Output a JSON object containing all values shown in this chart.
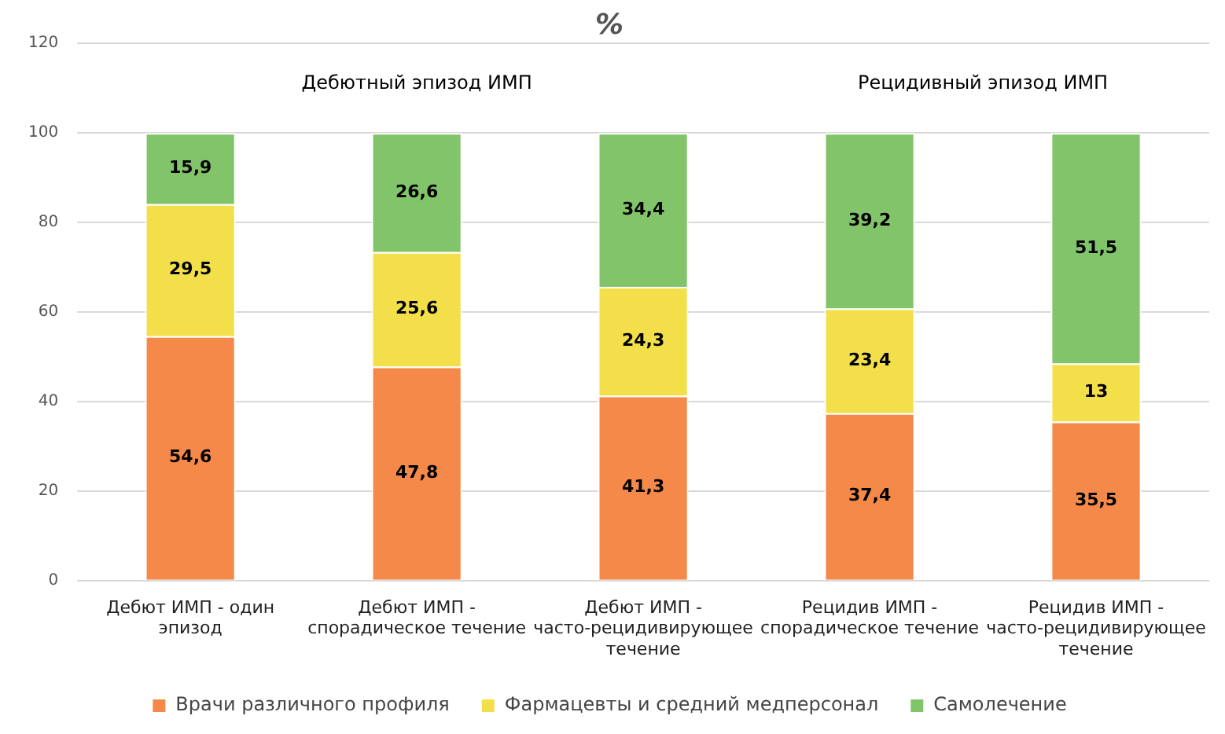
{
  "chart_data": {
    "type": "bar",
    "stacked": true,
    "title": "%",
    "categories": [
      "Дебют ИМП - один эпизод",
      "Дебют ИМП - спорадическое течение",
      "Дебют ИМП - часто-рецидивирующее течение",
      "Рецидив ИМП - спорадическое течение",
      "Рецидив ИМП - часто-рецидивирующее течение"
    ],
    "series": [
      {
        "name": "Врачи различного профиля",
        "color": "#f4894a",
        "values": [
          54.6,
          47.8,
          41.3,
          37.4,
          35.5
        ],
        "value_labels": [
          "54,6",
          "47,8",
          "41,3",
          "37,4",
          "35,5"
        ]
      },
      {
        "name": "Фармацевты и средний медперсонал",
        "color": "#f3df4a",
        "values": [
          29.5,
          25.6,
          24.3,
          23.4,
          13
        ],
        "value_labels": [
          "29,5",
          "25,6",
          "24,3",
          "23,4",
          "13"
        ]
      },
      {
        "name": "Самолечение",
        "color": "#82c46a",
        "values": [
          15.9,
          26.6,
          34.4,
          39.2,
          51.5
        ],
        "value_labels": [
          "15,9",
          "26,6",
          "34,4",
          "39,2",
          "51,5"
        ]
      }
    ],
    "annotations": [
      "Дебютный эпизод ИМП",
      "Рецидивный эпизод ИМП"
    ],
    "ylim": [
      0,
      120
    ],
    "yticks": [
      0,
      20,
      40,
      60,
      80,
      100,
      120
    ],
    "grid": "y",
    "legend": "bottom"
  }
}
